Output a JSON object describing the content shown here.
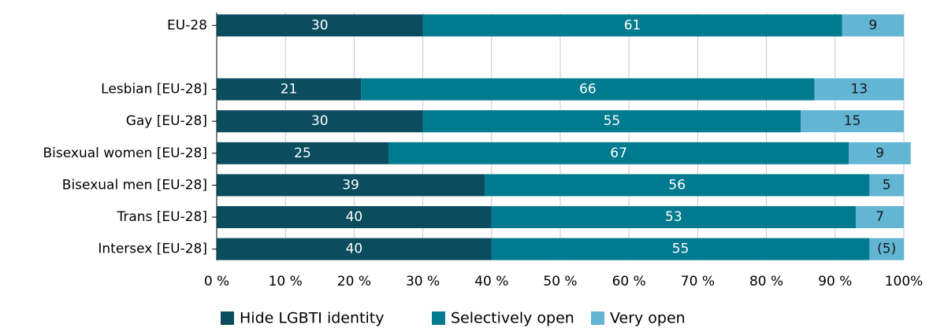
{
  "chart_data": {
    "type": "stacked-bar-horizontal",
    "categories": [
      "EU-28",
      null,
      "Lesbian [EU-28]",
      "Gay [EU-28]",
      "Bisexual women [EU-28]",
      "Bisexual men [EU-28]",
      "Trans [EU-28]",
      "Intersex [EU-28]"
    ],
    "series": [
      {
        "name": "Hide LGBTI identity",
        "color": "#0b4d5e",
        "values": [
          30,
          null,
          21,
          30,
          25,
          39,
          40,
          40
        ]
      },
      {
        "name": "Selectively open",
        "color": "#007a8e",
        "values": [
          61,
          null,
          66,
          55,
          67,
          56,
          53,
          55
        ]
      },
      {
        "name": "Very open",
        "color": "#62b5d3",
        "values": [
          9,
          null,
          13,
          15,
          9,
          5,
          7,
          5
        ],
        "value_labels": [
          "9",
          null,
          "13",
          "15",
          "9",
          "5",
          "7",
          "(5)"
        ]
      }
    ],
    "xlim": [
      0,
      100
    ],
    "xticks": [
      {
        "value": 0,
        "label": "0 %"
      },
      {
        "value": 10,
        "label": "10 %"
      },
      {
        "value": 20,
        "label": "20 %"
      },
      {
        "value": 30,
        "label": "30 %"
      },
      {
        "value": 40,
        "label": "40 %"
      },
      {
        "value": 50,
        "label": "50 %"
      },
      {
        "value": 60,
        "label": "60 %"
      },
      {
        "value": 70,
        "label": "70 %"
      },
      {
        "value": 80,
        "label": "80 %"
      },
      {
        "value": 90,
        "label": "90 %"
      },
      {
        "value": 100,
        "label": "100%"
      }
    ],
    "grid": true,
    "legend": "bottom"
  }
}
